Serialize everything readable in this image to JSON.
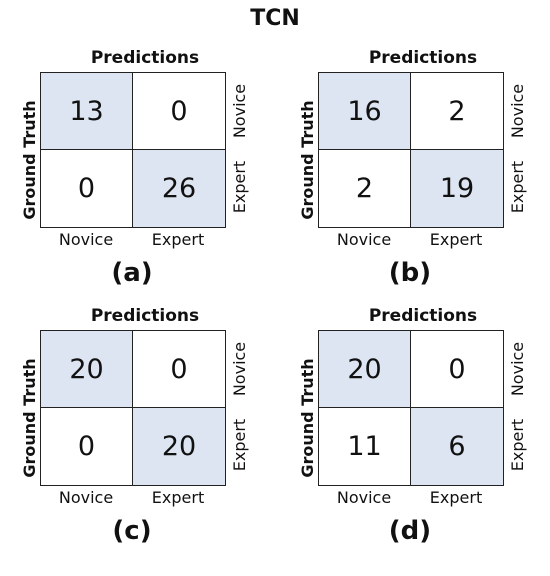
{
  "title": "TCN",
  "chart_data": [
    {
      "type": "heatmap",
      "panel_label": "(a)",
      "xlabel": "Predictions",
      "ylabel": "Ground Truth",
      "x_categories": [
        "Novice",
        "Expert"
      ],
      "y_categories": [
        "Novice",
        "Expert"
      ],
      "values": [
        [
          13,
          0
        ],
        [
          0,
          26
        ]
      ]
    },
    {
      "type": "heatmap",
      "panel_label": "(b)",
      "xlabel": "Predictions",
      "ylabel": "Ground Truth",
      "x_categories": [
        "Novice",
        "Expert"
      ],
      "y_categories": [
        "Novice",
        "Expert"
      ],
      "values": [
        [
          16,
          2
        ],
        [
          2,
          19
        ]
      ]
    },
    {
      "type": "heatmap",
      "panel_label": "(c)",
      "xlabel": "Predictions",
      "ylabel": "Ground Truth",
      "x_categories": [
        "Novice",
        "Expert"
      ],
      "y_categories": [
        "Novice",
        "Expert"
      ],
      "values": [
        [
          20,
          0
        ],
        [
          0,
          20
        ]
      ]
    },
    {
      "type": "heatmap",
      "panel_label": "(d)",
      "xlabel": "Predictions",
      "ylabel": "Ground Truth",
      "x_categories": [
        "Novice",
        "Expert"
      ],
      "y_categories": [
        "Novice",
        "Expert"
      ],
      "values": [
        [
          20,
          0
        ],
        [
          11,
          6
        ]
      ]
    }
  ],
  "colors": {
    "diagonal": "#dde5f2",
    "off_diagonal": "#ffffff",
    "grid_line": "#222222"
  }
}
